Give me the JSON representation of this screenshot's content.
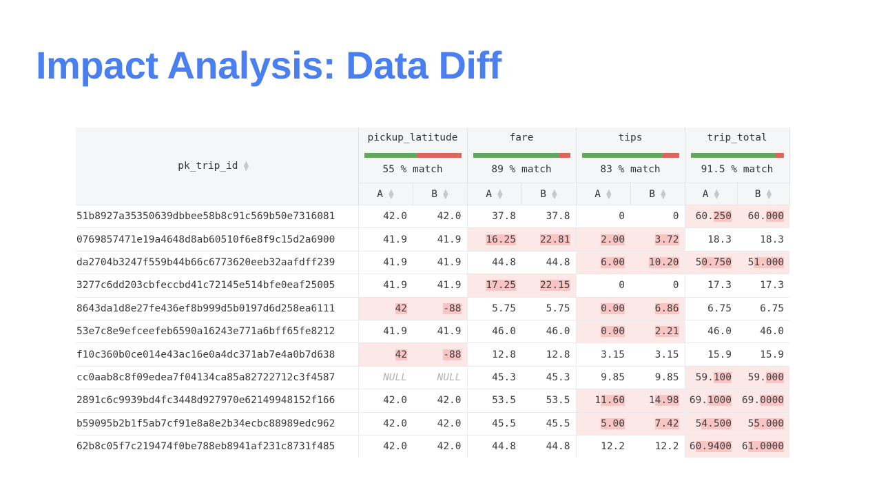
{
  "title": "Impact Analysis: Data Diff",
  "table": {
    "pk_header": "pk_trip_id",
    "columns": [
      {
        "name": "pickup_latitude",
        "match_pct": "55 % match",
        "match_value": 55,
        "a_label": "A",
        "b_label": "B"
      },
      {
        "name": "fare",
        "match_pct": "89 % match",
        "match_value": 89,
        "a_label": "A",
        "b_label": "B"
      },
      {
        "name": "tips",
        "match_pct": "83 % match",
        "match_value": 83,
        "a_label": "A",
        "b_label": "B"
      },
      {
        "name": "trip_total",
        "match_pct": "91.5 % match",
        "match_value": 91.5,
        "a_label": "A",
        "b_label": "B"
      }
    ],
    "rows": [
      {
        "pk": "51b8927a35350639dbbee58b8c91c569b50e7316081",
        "cells": [
          {
            "a": "42.0",
            "b": "42.0",
            "diff": false
          },
          {
            "a": "37.8",
            "b": "37.8",
            "diff": false
          },
          {
            "a": "0",
            "b": "0",
            "diff": false
          },
          {
            "a": "60.250",
            "b": "60.000",
            "diff": true
          }
        ]
      },
      {
        "pk": "0769857471e19a4648d8ab60510f6e8f9c15d2a6900",
        "cells": [
          {
            "a": "41.9",
            "b": "41.9",
            "diff": false
          },
          {
            "a": "16.25",
            "b": "22.81",
            "diff": true
          },
          {
            "a": "2.00",
            "b": "3.72",
            "diff": true
          },
          {
            "a": "18.3",
            "b": "18.3",
            "diff": false
          }
        ]
      },
      {
        "pk": "da2704b3247f559b44b66c6773620eeb32aafdff239",
        "cells": [
          {
            "a": "41.9",
            "b": "41.9",
            "diff": false
          },
          {
            "a": "44.8",
            "b": "44.8",
            "diff": false
          },
          {
            "a": "6.00",
            "b": "10.20",
            "diff": true
          },
          {
            "a": "50.750",
            "b": "51.000",
            "diff": true
          }
        ]
      },
      {
        "pk": "3277c6dd203cbfeccbd41c72145e514bfe0eaf25005",
        "cells": [
          {
            "a": "41.9",
            "b": "41.9",
            "diff": false
          },
          {
            "a": "17.25",
            "b": "22.15",
            "diff": true
          },
          {
            "a": "0",
            "b": "0",
            "diff": false
          },
          {
            "a": "17.3",
            "b": "17.3",
            "diff": false
          }
        ]
      },
      {
        "pk": "8643da1d8e27fe436ef8b999d5b0197d6d258ea6111",
        "cells": [
          {
            "a": "42",
            "b": "-88",
            "diff": true
          },
          {
            "a": "5.75",
            "b": "5.75",
            "diff": false
          },
          {
            "a": "0.00",
            "b": "6.86",
            "diff": true
          },
          {
            "a": "6.75",
            "b": "6.75",
            "diff": false
          }
        ]
      },
      {
        "pk": "53e7c8e9efceefeb6590a16243e771a6bff65fe8212",
        "cells": [
          {
            "a": "41.9",
            "b": "41.9",
            "diff": false
          },
          {
            "a": "46.0",
            "b": "46.0",
            "diff": false
          },
          {
            "a": "0.00",
            "b": "2.21",
            "diff": true
          },
          {
            "a": "46.0",
            "b": "46.0",
            "diff": false
          }
        ]
      },
      {
        "pk": "f10c360b0ce014e43ac16e0a4dc371ab7e4a0b7d638",
        "cells": [
          {
            "a": "42",
            "b": "-88",
            "diff": true
          },
          {
            "a": "12.8",
            "b": "12.8",
            "diff": false
          },
          {
            "a": "3.15",
            "b": "3.15",
            "diff": false
          },
          {
            "a": "15.9",
            "b": "15.9",
            "diff": false
          }
        ]
      },
      {
        "pk": "cc0aab8c8f09edea7f04134ca85a82722712c3f4587",
        "cells": [
          {
            "a": "NULL",
            "b": "NULL",
            "diff": false,
            "null": true
          },
          {
            "a": "45.3",
            "b": "45.3",
            "diff": false
          },
          {
            "a": "9.85",
            "b": "9.85",
            "diff": false
          },
          {
            "a": "59.100",
            "b": "59.000",
            "diff": true
          }
        ]
      },
      {
        "pk": "2891c6c9939bd4fc3448d927970e62149948152f166",
        "cells": [
          {
            "a": "42.0",
            "b": "42.0",
            "diff": false
          },
          {
            "a": "53.5",
            "b": "53.5",
            "diff": false
          },
          {
            "a": "11.60",
            "b": "14.98",
            "diff": true
          },
          {
            "a": "69.1000",
            "b": "69.0000",
            "diff": true
          }
        ]
      },
      {
        "pk": "b59095b2b1f5ab7cf91e8a8e2b34ecbc88989edc962",
        "cells": [
          {
            "a": "42.0",
            "b": "42.0",
            "diff": false
          },
          {
            "a": "45.5",
            "b": "45.5",
            "diff": false
          },
          {
            "a": "5.00",
            "b": "7.42",
            "diff": true
          },
          {
            "a": "54.500",
            "b": "55.000",
            "diff": true
          }
        ]
      },
      {
        "pk": "62b8c05f7c219474f0be788eb8941af231c8731f485",
        "cells": [
          {
            "a": "42.0",
            "b": "42.0",
            "diff": false
          },
          {
            "a": "44.8",
            "b": "44.8",
            "diff": false
          },
          {
            "a": "12.2",
            "b": "12.2",
            "diff": false
          },
          {
            "a": "60.9400",
            "b": "61.0000",
            "diff": true
          }
        ]
      }
    ]
  }
}
